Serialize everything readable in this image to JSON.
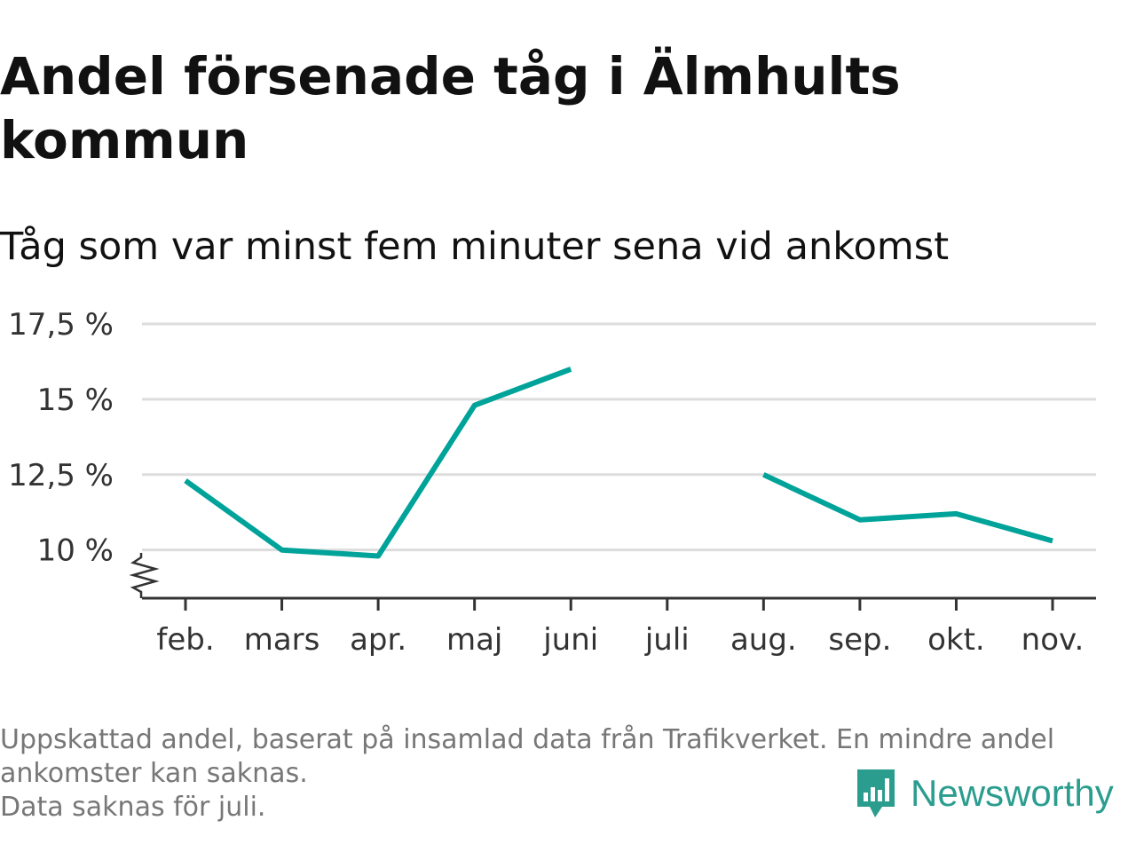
{
  "header": {
    "title": "Andel försenade tåg i Älmhults kommun",
    "subtitle": "Tåg som var minst fem minuter sena vid ankomst"
  },
  "footer": {
    "note_lines": [
      "Uppskattad andel, baserat på insamlad data från Trafikverket. En mindre andel",
      "ankomster kan saknas.",
      "Data saknas för juli."
    ],
    "brand": "Newsworthy"
  },
  "colors": {
    "line": "#00a399",
    "brand": "#2a9d8f",
    "grid": "#dddddd",
    "axis": "#333333",
    "text": "#111111"
  },
  "icons": {
    "brand_logo": "bar-chart-speech-bubble-icon",
    "axis_break": "zigzag-axis-break-icon"
  },
  "chart_data": {
    "type": "line",
    "title": "Andel försenade tåg i Älmhults kommun",
    "subtitle": "Tåg som var minst fem minuter sena vid ankomst",
    "categories": [
      "feb.",
      "mars",
      "apr.",
      "maj",
      "juni",
      "juli",
      "aug.",
      "sep.",
      "okt.",
      "nov."
    ],
    "series": [
      {
        "values": [
          12.3,
          10.0,
          9.8,
          14.8,
          16.0,
          null,
          12.5,
          11.0,
          11.2,
          10.3
        ]
      }
    ],
    "y_ticks": [
      10,
      12.5,
      15,
      17.5
    ],
    "y_tick_labels": [
      "10 %",
      "12,5 %",
      "15 %",
      "17,5 %"
    ],
    "ylim": [
      8.4,
      17.5
    ],
    "y_axis_break": true,
    "grid": true,
    "legend": "none"
  }
}
